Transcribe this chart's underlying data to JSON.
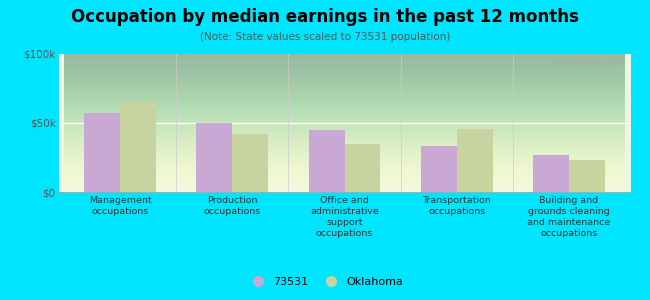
{
  "title": "Occupation by median earnings in the past 12 months",
  "subtitle": "(Note: State values scaled to 73531 population)",
  "categories": [
    "Management\noccupations",
    "Production\noccupations",
    "Office and\nadministrative\nsupport\noccupations",
    "Transportation\noccupations",
    "Building and\ngrounds cleaning\nand maintenance\noccupations"
  ],
  "series_73531": [
    57000,
    50000,
    45000,
    33000,
    27000
  ],
  "series_oklahoma": [
    65000,
    42000,
    35000,
    46000,
    23000
  ],
  "bar_color_73531": "#c9a8d4",
  "bar_color_oklahoma": "#c8d4a0",
  "background_color": "#00e5ff",
  "ylim": [
    0,
    100000
  ],
  "ytick_labels": [
    "$0",
    "$50k",
    "$100k"
  ],
  "legend_label_73531": "73531",
  "legend_label_oklahoma": "Oklahoma",
  "bar_width": 0.32,
  "watermark": "ⓘ City-Data.com"
}
